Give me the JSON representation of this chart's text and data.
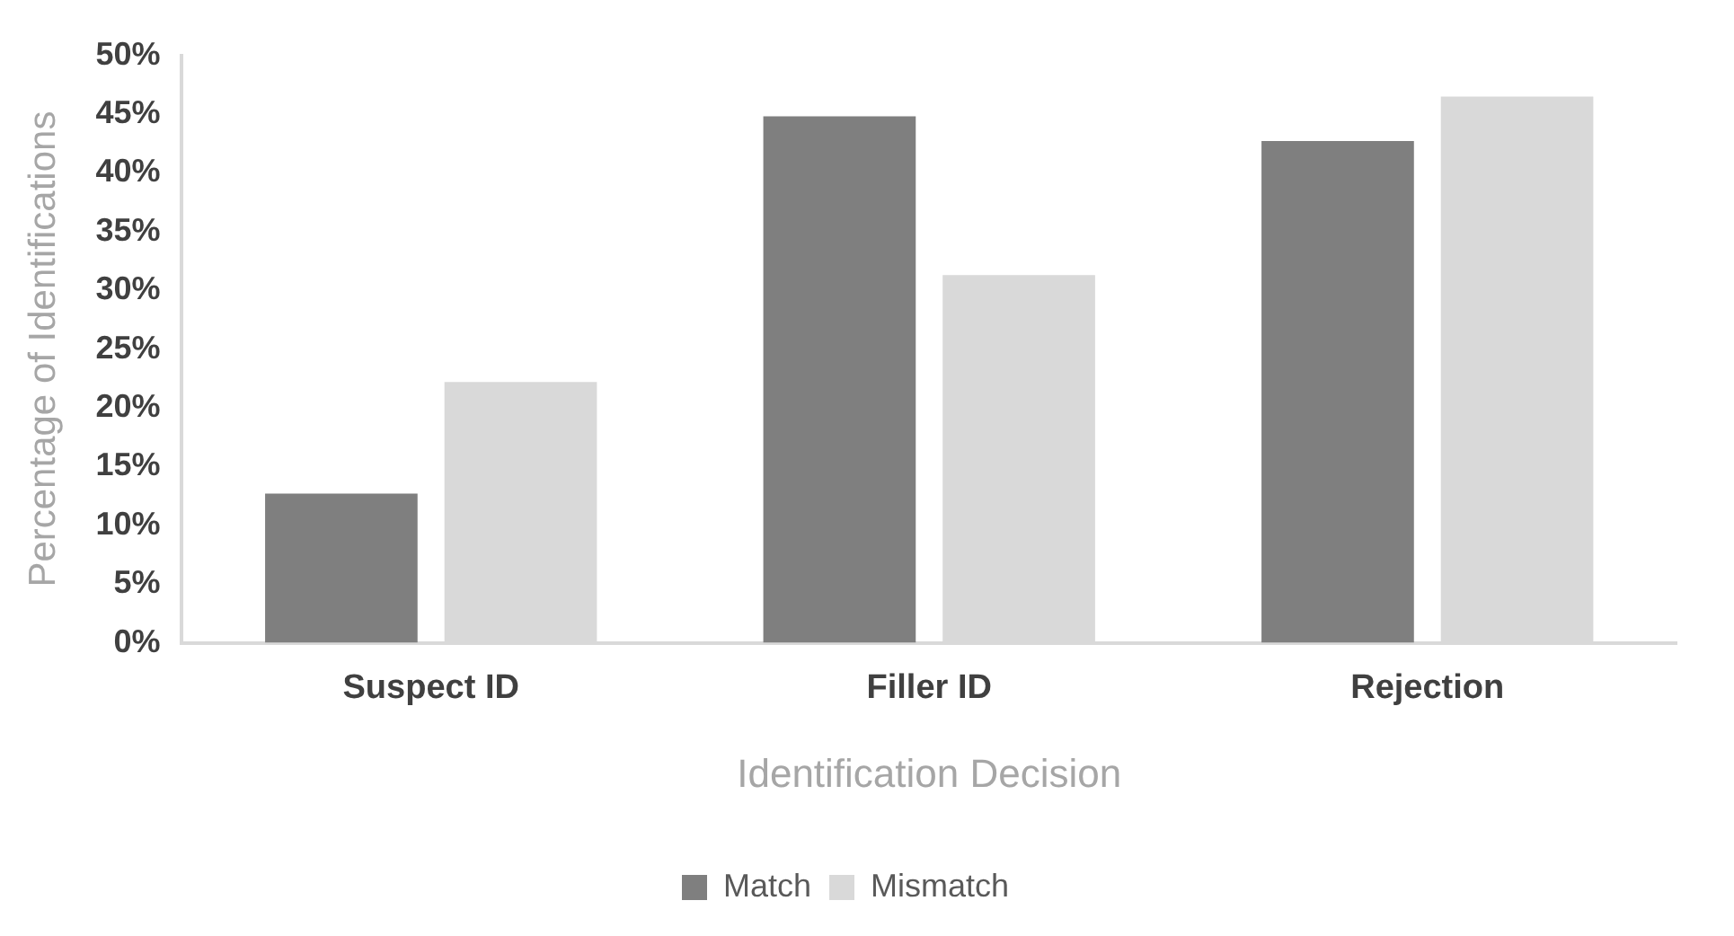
{
  "chart_data": {
    "type": "bar",
    "xlabel": "Identification Decision",
    "ylabel": "Percentage of Identifications",
    "categories": [
      "Suspect ID",
      "Filler ID",
      "Rejection"
    ],
    "series": [
      {
        "name": "Match",
        "color": "#7f7f7f",
        "values": [
          12.7,
          44.8,
          42.7
        ]
      },
      {
        "name": "Mismatch",
        "color": "#d9d9d9",
        "values": [
          22.2,
          31.3,
          46.5
        ]
      }
    ],
    "ylim": [
      0,
      50
    ],
    "yticks": [
      {
        "value": 0,
        "label": "0%"
      },
      {
        "value": 5,
        "label": "5%"
      },
      {
        "value": 10,
        "label": "10%"
      },
      {
        "value": 15,
        "label": "15%"
      },
      {
        "value": 20,
        "label": "20%"
      },
      {
        "value": 25,
        "label": "25%"
      },
      {
        "value": 30,
        "label": "30%"
      },
      {
        "value": 35,
        "label": "35%"
      },
      {
        "value": 40,
        "label": "40%"
      },
      {
        "value": 45,
        "label": "45%"
      },
      {
        "value": 50,
        "label": "50%"
      }
    ],
    "grid": false,
    "legend": "bottom"
  }
}
